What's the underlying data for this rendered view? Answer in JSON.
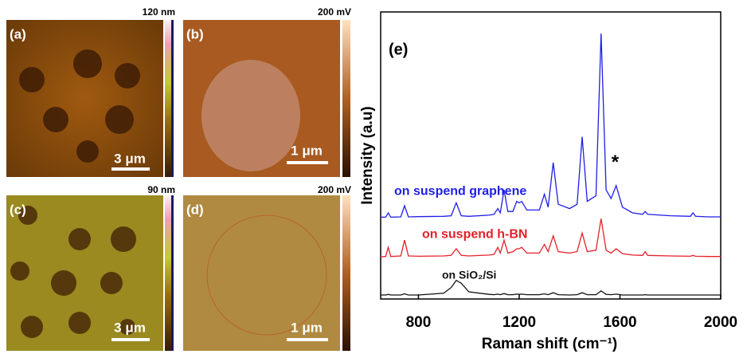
{
  "panels": [
    {
      "label": "(a)",
      "scale_max": "120 nm",
      "scale_bar": "3 μm"
    },
    {
      "label": "(b)",
      "scale_max": "200 mV",
      "scale_bar": "1 μm"
    },
    {
      "label": "(c)",
      "scale_max": "90 nm",
      "scale_bar": "3 μm"
    },
    {
      "label": "(d)",
      "scale_max": "200 mV",
      "scale_bar": "1 μm"
    }
  ],
  "chart_data": {
    "type": "line",
    "label": "(e)",
    "x_label": "Raman shift (cm⁻¹)",
    "y_label": "Intensity (a.u)",
    "annotation": "*",
    "annotation_x": 1585,
    "x": [
      650,
      670,
      680,
      690,
      730,
      745,
      760,
      800,
      900,
      930,
      950,
      970,
      1000,
      1080,
      1100,
      1115,
      1125,
      1140,
      1155,
      1175,
      1190,
      1200,
      1210,
      1230,
      1280,
      1300,
      1315,
      1335,
      1355,
      1400,
      1430,
      1450,
      1470,
      1505,
      1525,
      1545,
      1565,
      1585,
      1610,
      1650,
      1690,
      1700,
      1710,
      1800,
      1880,
      1890,
      1900,
      1950,
      2000
    ],
    "series": [
      {
        "name": "on suspend graphene",
        "color": "#1f1fe6",
        "values": [
          28.5,
          28.5,
          30,
          28.5,
          28.6,
          32.5,
          28.6,
          28.7,
          28.8,
          29,
          33.5,
          29,
          28.8,
          29.2,
          29.5,
          31.5,
          30,
          38,
          30.5,
          30.5,
          34,
          33.5,
          34,
          31,
          31,
          36.5,
          32,
          47.5,
          33,
          31.5,
          33,
          56.5,
          34,
          36,
          92.5,
          38,
          35,
          39.5,
          32,
          30,
          29.5,
          30.5,
          29.5,
          29,
          28.8,
          30,
          28.8,
          28.6,
          28.6
        ]
      },
      {
        "name": "on suspend h-BN",
        "color": "#e6202a",
        "values": [
          14.7,
          14.8,
          18,
          14.8,
          15,
          20.5,
          15,
          14.9,
          15,
          15.2,
          17.5,
          15.2,
          15,
          15.3,
          15.5,
          18,
          16,
          20.5,
          16,
          16.5,
          17.5,
          17.5,
          18,
          16,
          16,
          19,
          16.5,
          22,
          16.5,
          16,
          16.5,
          23,
          16.5,
          17,
          28,
          17,
          16,
          17.5,
          15.8,
          15.3,
          15.2,
          16.5,
          15.2,
          15,
          14.9,
          15.2,
          14.9,
          14.8,
          14.8
        ]
      },
      {
        "name": "on SiO₂/Si",
        "color": "#111111",
        "values": [
          1.4,
          1.4,
          1.6,
          1.4,
          1.4,
          1.8,
          1.4,
          1.4,
          2,
          4,
          6.5,
          5.5,
          2.5,
          1.6,
          1.5,
          1.7,
          1.5,
          1.9,
          1.5,
          1.5,
          1.7,
          1.6,
          1.7,
          1.5,
          1.5,
          1.8,
          1.5,
          2.2,
          1.5,
          1.4,
          1.5,
          2.2,
          1.5,
          1.5,
          2.8,
          1.6,
          1.5,
          1.7,
          1.4,
          1.4,
          1.4,
          1.5,
          1.4,
          1.4,
          1.4,
          1.4,
          1.4,
          1.4,
          1.4
        ]
      }
    ],
    "xlim": [
      650,
      2000
    ],
    "xticks": [
      800,
      1200,
      1600,
      2000
    ],
    "ylim": [
      0,
      100
    ]
  }
}
